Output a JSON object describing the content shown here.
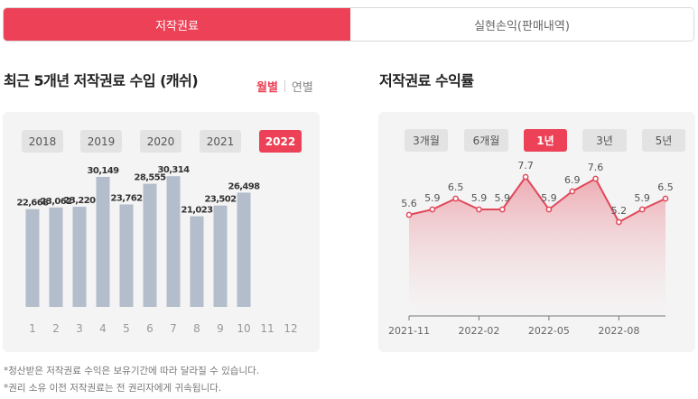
{
  "tabs": {
    "active_label": "저작권료",
    "inactive_label": "실현손익(판매내역)"
  },
  "left_section": {
    "title": "최근 5개년 저작권료 수입 (캐쉬)",
    "toggle_monthly": "월별",
    "toggle_yearly": "연별",
    "years": [
      "2018",
      "2019",
      "2020",
      "2021",
      "2022"
    ],
    "selected_year": "2022"
  },
  "right_section": {
    "title": "저작권료 수익률",
    "periods": [
      "3개월",
      "6개월",
      "1년",
      "3년",
      "5년"
    ],
    "selected_period": "1년"
  },
  "chart_data": [
    {
      "type": "bar",
      "title": "최근 5개년 저작권료 수입 (캐쉬)",
      "categories": [
        "1",
        "2",
        "3",
        "4",
        "5",
        "6",
        "7",
        "8",
        "9",
        "10",
        "11",
        "12"
      ],
      "values": [
        22668,
        23062,
        23220,
        30149,
        23762,
        28555,
        30314,
        21023,
        23502,
        26498,
        null,
        null
      ],
      "value_labels": [
        "22,668",
        "23,062",
        "23,220",
        "30,149",
        "23,762",
        "28,555",
        "30,314",
        "21,023",
        "23,502",
        "26,498",
        "",
        ""
      ],
      "ylim": [
        0,
        36000
      ],
      "bar_color": "#b3bdcb"
    },
    {
      "type": "area",
      "title": "저작권료 수익률",
      "points": 12,
      "values": [
        5.6,
        5.9,
        6.5,
        5.9,
        5.9,
        7.7,
        5.9,
        6.9,
        7.6,
        5.2,
        5.9,
        6.5
      ],
      "value_labels": [
        "5.6",
        "5.9",
        "6.5",
        "5.9",
        "5.9",
        "7.7",
        "5.9",
        "6.9",
        "7.6",
        "5.2",
        "5.9",
        "6.5"
      ],
      "x_ticks": [
        {
          "label": "2021-11",
          "index": 0
        },
        {
          "label": "2022-02",
          "index": 3
        },
        {
          "label": "2022-05",
          "index": 6
        },
        {
          "label": "2022-08",
          "index": 9
        }
      ],
      "ylim": [
        0,
        9
      ],
      "line_color": "#e0485a"
    }
  ],
  "notes": [
    "*정산받은 저작권료 수익은 보유기간에 따라 달라질 수 있습니다.",
    "*권리 소유 이전 저작권료는 전 권리자에게 귀속됩니다."
  ]
}
